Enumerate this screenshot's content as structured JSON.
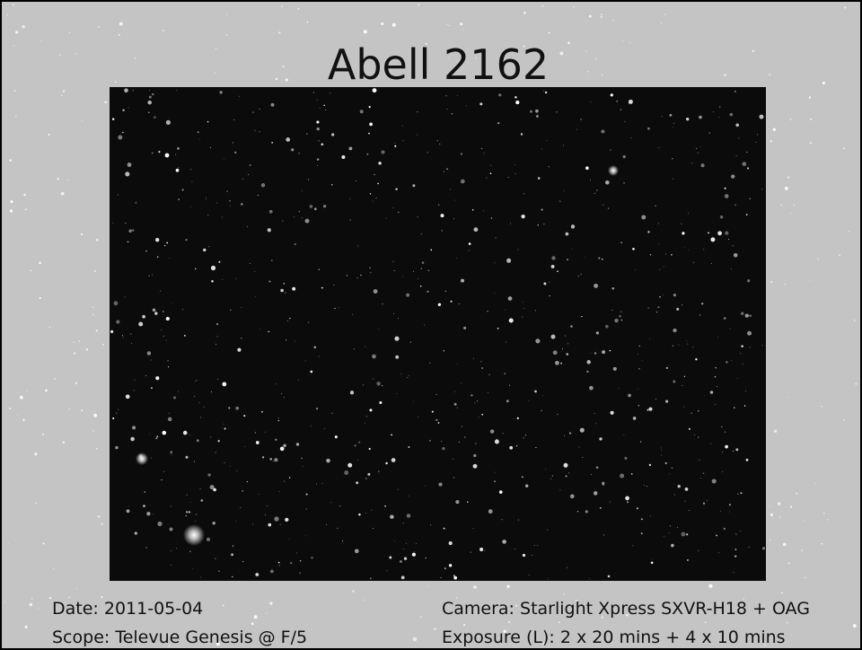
{
  "slide": {
    "title": "Abell 2162",
    "details_left": [
      "Date: 2011-05-04",
      "Scope: Televue Genesis @ F/5"
    ],
    "details_right": [
      "Camera: Starlight Xpress SXVR-H18 + OAG",
      "Exposure (L): 2 x 20 mins + 4 x 10 mins"
    ]
  }
}
